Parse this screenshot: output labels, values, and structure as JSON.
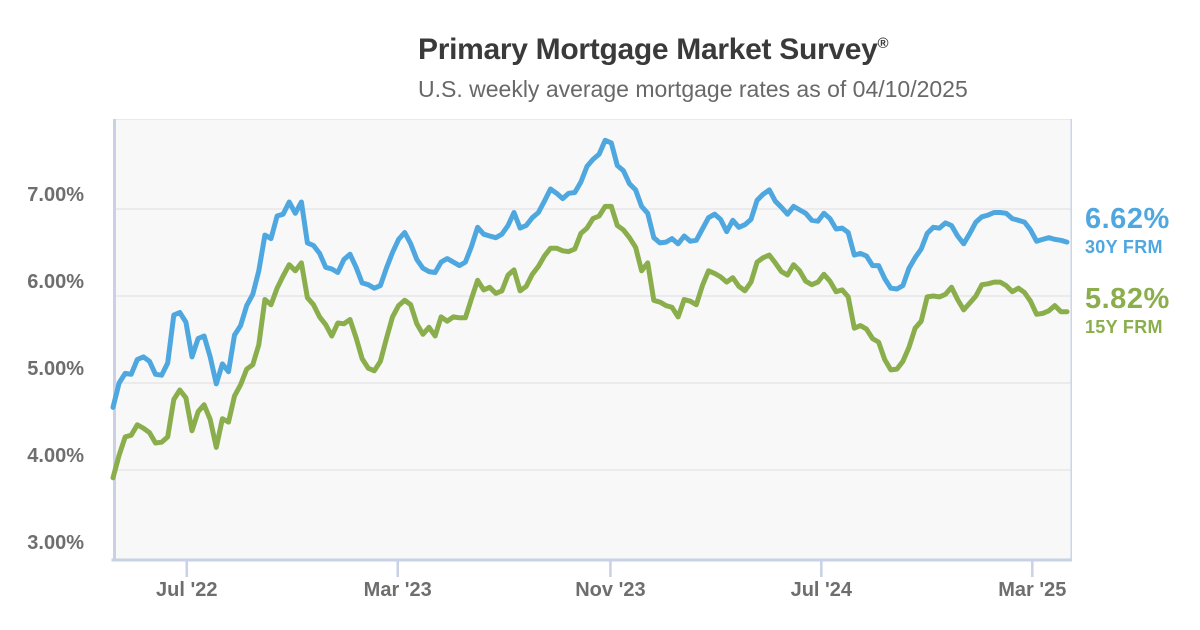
{
  "header": {
    "title": "Primary Mortgage Market Survey",
    "title_mark": "®",
    "subtitle": "U.S. weekly average mortgage rates as of 04/10/2025"
  },
  "colors": {
    "blue_30y": "#4FA7E0",
    "green_15y": "#8BAE4D",
    "grid": "#e3e3e6",
    "axis": "#c8d1e6",
    "border_top": "#e9e9eb",
    "plot_bg": "#f8f8f8",
    "title_text": "#3a3a3a",
    "subtitle_text": "#686868",
    "axis_label_text": "#6e6e6e"
  },
  "chart_data": {
    "type": "line",
    "title": "Primary Mortgage Market Survey®",
    "subtitle": "U.S. weekly average mortgage rates as of 04/10/2025",
    "ylim": [
      3,
      8
    ],
    "y_unit": "percent",
    "grid": true,
    "legend_position": "right-end-labels",
    "y_ticks": [
      {
        "value": 7,
        "label": "7.00%"
      },
      {
        "value": 6,
        "label": "6.00%"
      },
      {
        "value": 5,
        "label": "5.00%"
      },
      {
        "value": 4,
        "label": "4.00%"
      },
      {
        "value": 3,
        "label": "3.00%"
      }
    ],
    "x_ticks": [
      {
        "label": "Jul '22",
        "week_index": 12.14
      },
      {
        "label": "Mar '23",
        "week_index": 46.86
      },
      {
        "label": "Nov '23",
        "week_index": 81.86
      },
      {
        "label": "Jul '24",
        "week_index": 116.57
      },
      {
        "label": "Mar '25",
        "week_index": 151.29
      }
    ],
    "x": [
      "2022-04-07",
      "2022-04-14",
      "2022-04-21",
      "2022-04-28",
      "2022-05-05",
      "2022-05-12",
      "2022-05-19",
      "2022-05-26",
      "2022-06-02",
      "2022-06-09",
      "2022-06-16",
      "2022-06-23",
      "2022-06-30",
      "2022-07-07",
      "2022-07-14",
      "2022-07-21",
      "2022-07-28",
      "2022-08-04",
      "2022-08-11",
      "2022-08-18",
      "2022-08-25",
      "2022-09-01",
      "2022-09-08",
      "2022-09-15",
      "2022-09-22",
      "2022-09-29",
      "2022-10-06",
      "2022-10-13",
      "2022-10-20",
      "2022-10-27",
      "2022-11-03",
      "2022-11-10",
      "2022-11-17",
      "2022-11-23",
      "2022-12-01",
      "2022-12-08",
      "2022-12-15",
      "2022-12-22",
      "2022-12-29",
      "2023-01-05",
      "2023-01-12",
      "2023-01-19",
      "2023-01-26",
      "2023-02-02",
      "2023-02-09",
      "2023-02-16",
      "2023-02-23",
      "2023-03-02",
      "2023-03-09",
      "2023-03-16",
      "2023-03-23",
      "2023-03-30",
      "2023-04-06",
      "2023-04-13",
      "2023-04-20",
      "2023-04-27",
      "2023-05-04",
      "2023-05-11",
      "2023-05-18",
      "2023-05-25",
      "2023-06-01",
      "2023-06-08",
      "2023-06-15",
      "2023-06-22",
      "2023-06-29",
      "2023-07-06",
      "2023-07-13",
      "2023-07-20",
      "2023-07-27",
      "2023-08-03",
      "2023-08-10",
      "2023-08-17",
      "2023-08-24",
      "2023-08-31",
      "2023-09-07",
      "2023-09-14",
      "2023-09-21",
      "2023-09-28",
      "2023-10-05",
      "2023-10-12",
      "2023-10-19",
      "2023-10-26",
      "2023-11-02",
      "2023-11-09",
      "2023-11-16",
      "2023-11-22",
      "2023-11-30",
      "2023-12-07",
      "2023-12-14",
      "2023-12-21",
      "2023-12-28",
      "2024-01-04",
      "2024-01-11",
      "2024-01-18",
      "2024-01-25",
      "2024-02-01",
      "2024-02-08",
      "2024-02-15",
      "2024-02-22",
      "2024-02-29",
      "2024-03-07",
      "2024-03-14",
      "2024-03-21",
      "2024-03-28",
      "2024-04-04",
      "2024-04-11",
      "2024-04-18",
      "2024-04-25",
      "2024-05-02",
      "2024-05-09",
      "2024-05-16",
      "2024-05-23",
      "2024-05-30",
      "2024-06-06",
      "2024-06-13",
      "2024-06-20",
      "2024-06-27",
      "2024-07-03",
      "2024-07-11",
      "2024-07-18",
      "2024-07-25",
      "2024-08-01",
      "2024-08-08",
      "2024-08-15",
      "2024-08-22",
      "2024-08-29",
      "2024-09-05",
      "2024-09-12",
      "2024-09-19",
      "2024-09-26",
      "2024-10-03",
      "2024-10-10",
      "2024-10-17",
      "2024-10-24",
      "2024-10-31",
      "2024-11-07",
      "2024-11-14",
      "2024-11-21",
      "2024-11-27",
      "2024-12-05",
      "2024-12-12",
      "2024-12-19",
      "2024-12-26",
      "2025-01-02",
      "2025-01-09",
      "2025-01-16",
      "2025-01-23",
      "2025-01-30",
      "2025-02-06",
      "2025-02-13",
      "2025-02-20",
      "2025-02-27",
      "2025-03-06",
      "2025-03-13",
      "2025-03-20",
      "2025-03-27",
      "2025-04-03",
      "2025-04-10"
    ],
    "series": [
      {
        "name": "30Y FRM",
        "color": "#4FA7E0",
        "current_label": "6.62%",
        "current_value": 6.62,
        "values": [
          4.72,
          5.0,
          5.11,
          5.1,
          5.27,
          5.3,
          5.25,
          5.1,
          5.09,
          5.23,
          5.78,
          5.81,
          5.7,
          5.3,
          5.51,
          5.54,
          5.3,
          4.99,
          5.22,
          5.13,
          5.55,
          5.66,
          5.89,
          6.02,
          6.29,
          6.7,
          6.66,
          6.92,
          6.94,
          7.08,
          6.95,
          7.08,
          6.61,
          6.58,
          6.49,
          6.33,
          6.31,
          6.27,
          6.42,
          6.48,
          6.33,
          6.15,
          6.13,
          6.09,
          6.12,
          6.32,
          6.5,
          6.65,
          6.73,
          6.6,
          6.42,
          6.32,
          6.28,
          6.27,
          6.39,
          6.43,
          6.39,
          6.35,
          6.39,
          6.57,
          6.79,
          6.71,
          6.69,
          6.67,
          6.71,
          6.81,
          6.96,
          6.78,
          6.81,
          6.9,
          6.96,
          7.09,
          7.23,
          7.18,
          7.12,
          7.18,
          7.19,
          7.31,
          7.49,
          7.57,
          7.63,
          7.79,
          7.76,
          7.5,
          7.44,
          7.29,
          7.22,
          7.03,
          6.95,
          6.67,
          6.61,
          6.62,
          6.66,
          6.6,
          6.69,
          6.63,
          6.64,
          6.77,
          6.9,
          6.94,
          6.88,
          6.74,
          6.87,
          6.79,
          6.82,
          6.88,
          7.1,
          7.17,
          7.22,
          7.09,
          7.02,
          6.94,
          7.03,
          6.99,
          6.95,
          6.87,
          6.86,
          6.95,
          6.89,
          6.77,
          6.78,
          6.73,
          6.47,
          6.49,
          6.46,
          6.35,
          6.35,
          6.2,
          6.09,
          6.08,
          6.12,
          6.32,
          6.44,
          6.54,
          6.72,
          6.79,
          6.78,
          6.84,
          6.81,
          6.69,
          6.6,
          6.72,
          6.85,
          6.91,
          6.93,
          6.96,
          6.96,
          6.95,
          6.89,
          6.87,
          6.85,
          6.76,
          6.63,
          6.65,
          6.67,
          6.65,
          6.64,
          6.62
        ]
      },
      {
        "name": "15Y FRM",
        "color": "#8BAE4D",
        "current_label": "5.82%",
        "current_value": 5.82,
        "values": [
          3.91,
          4.17,
          4.38,
          4.4,
          4.52,
          4.48,
          4.43,
          4.31,
          4.32,
          4.38,
          4.81,
          4.92,
          4.83,
          4.45,
          4.67,
          4.75,
          4.58,
          4.26,
          4.59,
          4.55,
          4.85,
          4.98,
          5.16,
          5.21,
          5.44,
          5.96,
          5.9,
          6.09,
          6.23,
          6.36,
          6.29,
          6.38,
          5.98,
          5.9,
          5.76,
          5.67,
          5.54,
          5.69,
          5.68,
          5.73,
          5.52,
          5.28,
          5.17,
          5.14,
          5.25,
          5.51,
          5.76,
          5.89,
          5.95,
          5.9,
          5.68,
          5.56,
          5.64,
          5.54,
          5.76,
          5.71,
          5.76,
          5.75,
          5.75,
          5.97,
          6.18,
          6.07,
          6.1,
          6.03,
          6.06,
          6.24,
          6.3,
          6.06,
          6.11,
          6.25,
          6.34,
          6.46,
          6.55,
          6.55,
          6.52,
          6.51,
          6.54,
          6.72,
          6.78,
          6.89,
          6.92,
          7.03,
          7.03,
          6.81,
          6.76,
          6.67,
          6.56,
          6.29,
          6.38,
          5.95,
          5.93,
          5.89,
          5.87,
          5.76,
          5.96,
          5.94,
          5.9,
          6.12,
          6.29,
          6.26,
          6.22,
          6.16,
          6.21,
          6.11,
          6.06,
          6.16,
          6.39,
          6.44,
          6.47,
          6.38,
          6.28,
          6.24,
          6.36,
          6.29,
          6.17,
          6.13,
          6.16,
          6.25,
          6.17,
          6.05,
          6.07,
          5.99,
          5.63,
          5.66,
          5.62,
          5.51,
          5.47,
          5.27,
          5.15,
          5.16,
          5.25,
          5.41,
          5.63,
          5.71,
          5.99,
          6.0,
          5.99,
          6.02,
          6.1,
          5.96,
          5.84,
          5.92,
          6.0,
          6.13,
          6.14,
          6.16,
          6.16,
          6.12,
          6.05,
          6.09,
          6.04,
          5.94,
          5.79,
          5.8,
          5.83,
          5.89,
          5.82,
          5.82
        ]
      }
    ]
  }
}
